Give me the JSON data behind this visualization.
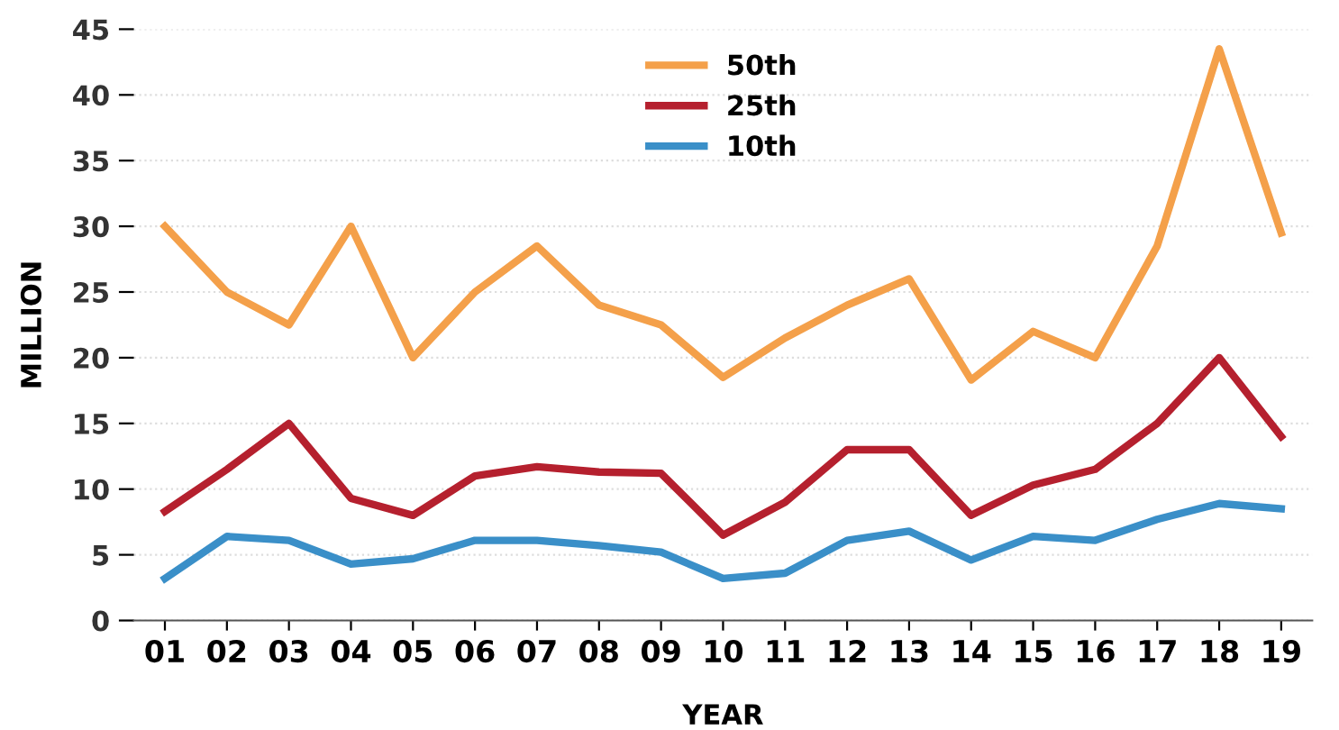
{
  "chart_data": {
    "type": "line",
    "xlabel": "YEAR",
    "ylabel": "MILLION",
    "categories": [
      "01",
      "02",
      "03",
      "04",
      "05",
      "06",
      "07",
      "08",
      "09",
      "10",
      "11",
      "12",
      "13",
      "14",
      "15",
      "16",
      "17",
      "18",
      "19"
    ],
    "series": [
      {
        "name": "50th",
        "color": "#f4a04a",
        "values": [
          30,
          25,
          22.5,
          30,
          20,
          25,
          28.5,
          24,
          22.5,
          18.5,
          21.5,
          24,
          26,
          18.3,
          22,
          20,
          28.5,
          43.5,
          29.5
        ]
      },
      {
        "name": "25th",
        "color": "#b5202e",
        "values": [
          8.3,
          11.5,
          15,
          9.3,
          8,
          11,
          11.7,
          11.3,
          11.2,
          6.5,
          9,
          13,
          13,
          8,
          10.3,
          11.5,
          15,
          20,
          14
        ]
      },
      {
        "name": "10th",
        "color": "#3a8fc8",
        "values": [
          3.2,
          6.4,
          6.1,
          4.3,
          4.7,
          6.1,
          6.1,
          5.7,
          5.2,
          3.2,
          3.6,
          6.1,
          6.8,
          4.6,
          6.4,
          6.1,
          7.7,
          8.9,
          8.5
        ]
      }
    ],
    "ylim": [
      0,
      45
    ],
    "yticks": [
      0,
      5,
      10,
      15,
      20,
      25,
      30,
      35,
      40,
      45
    ],
    "grid": "y",
    "legend": "top",
    "marker": "none",
    "line_style": "solid"
  }
}
